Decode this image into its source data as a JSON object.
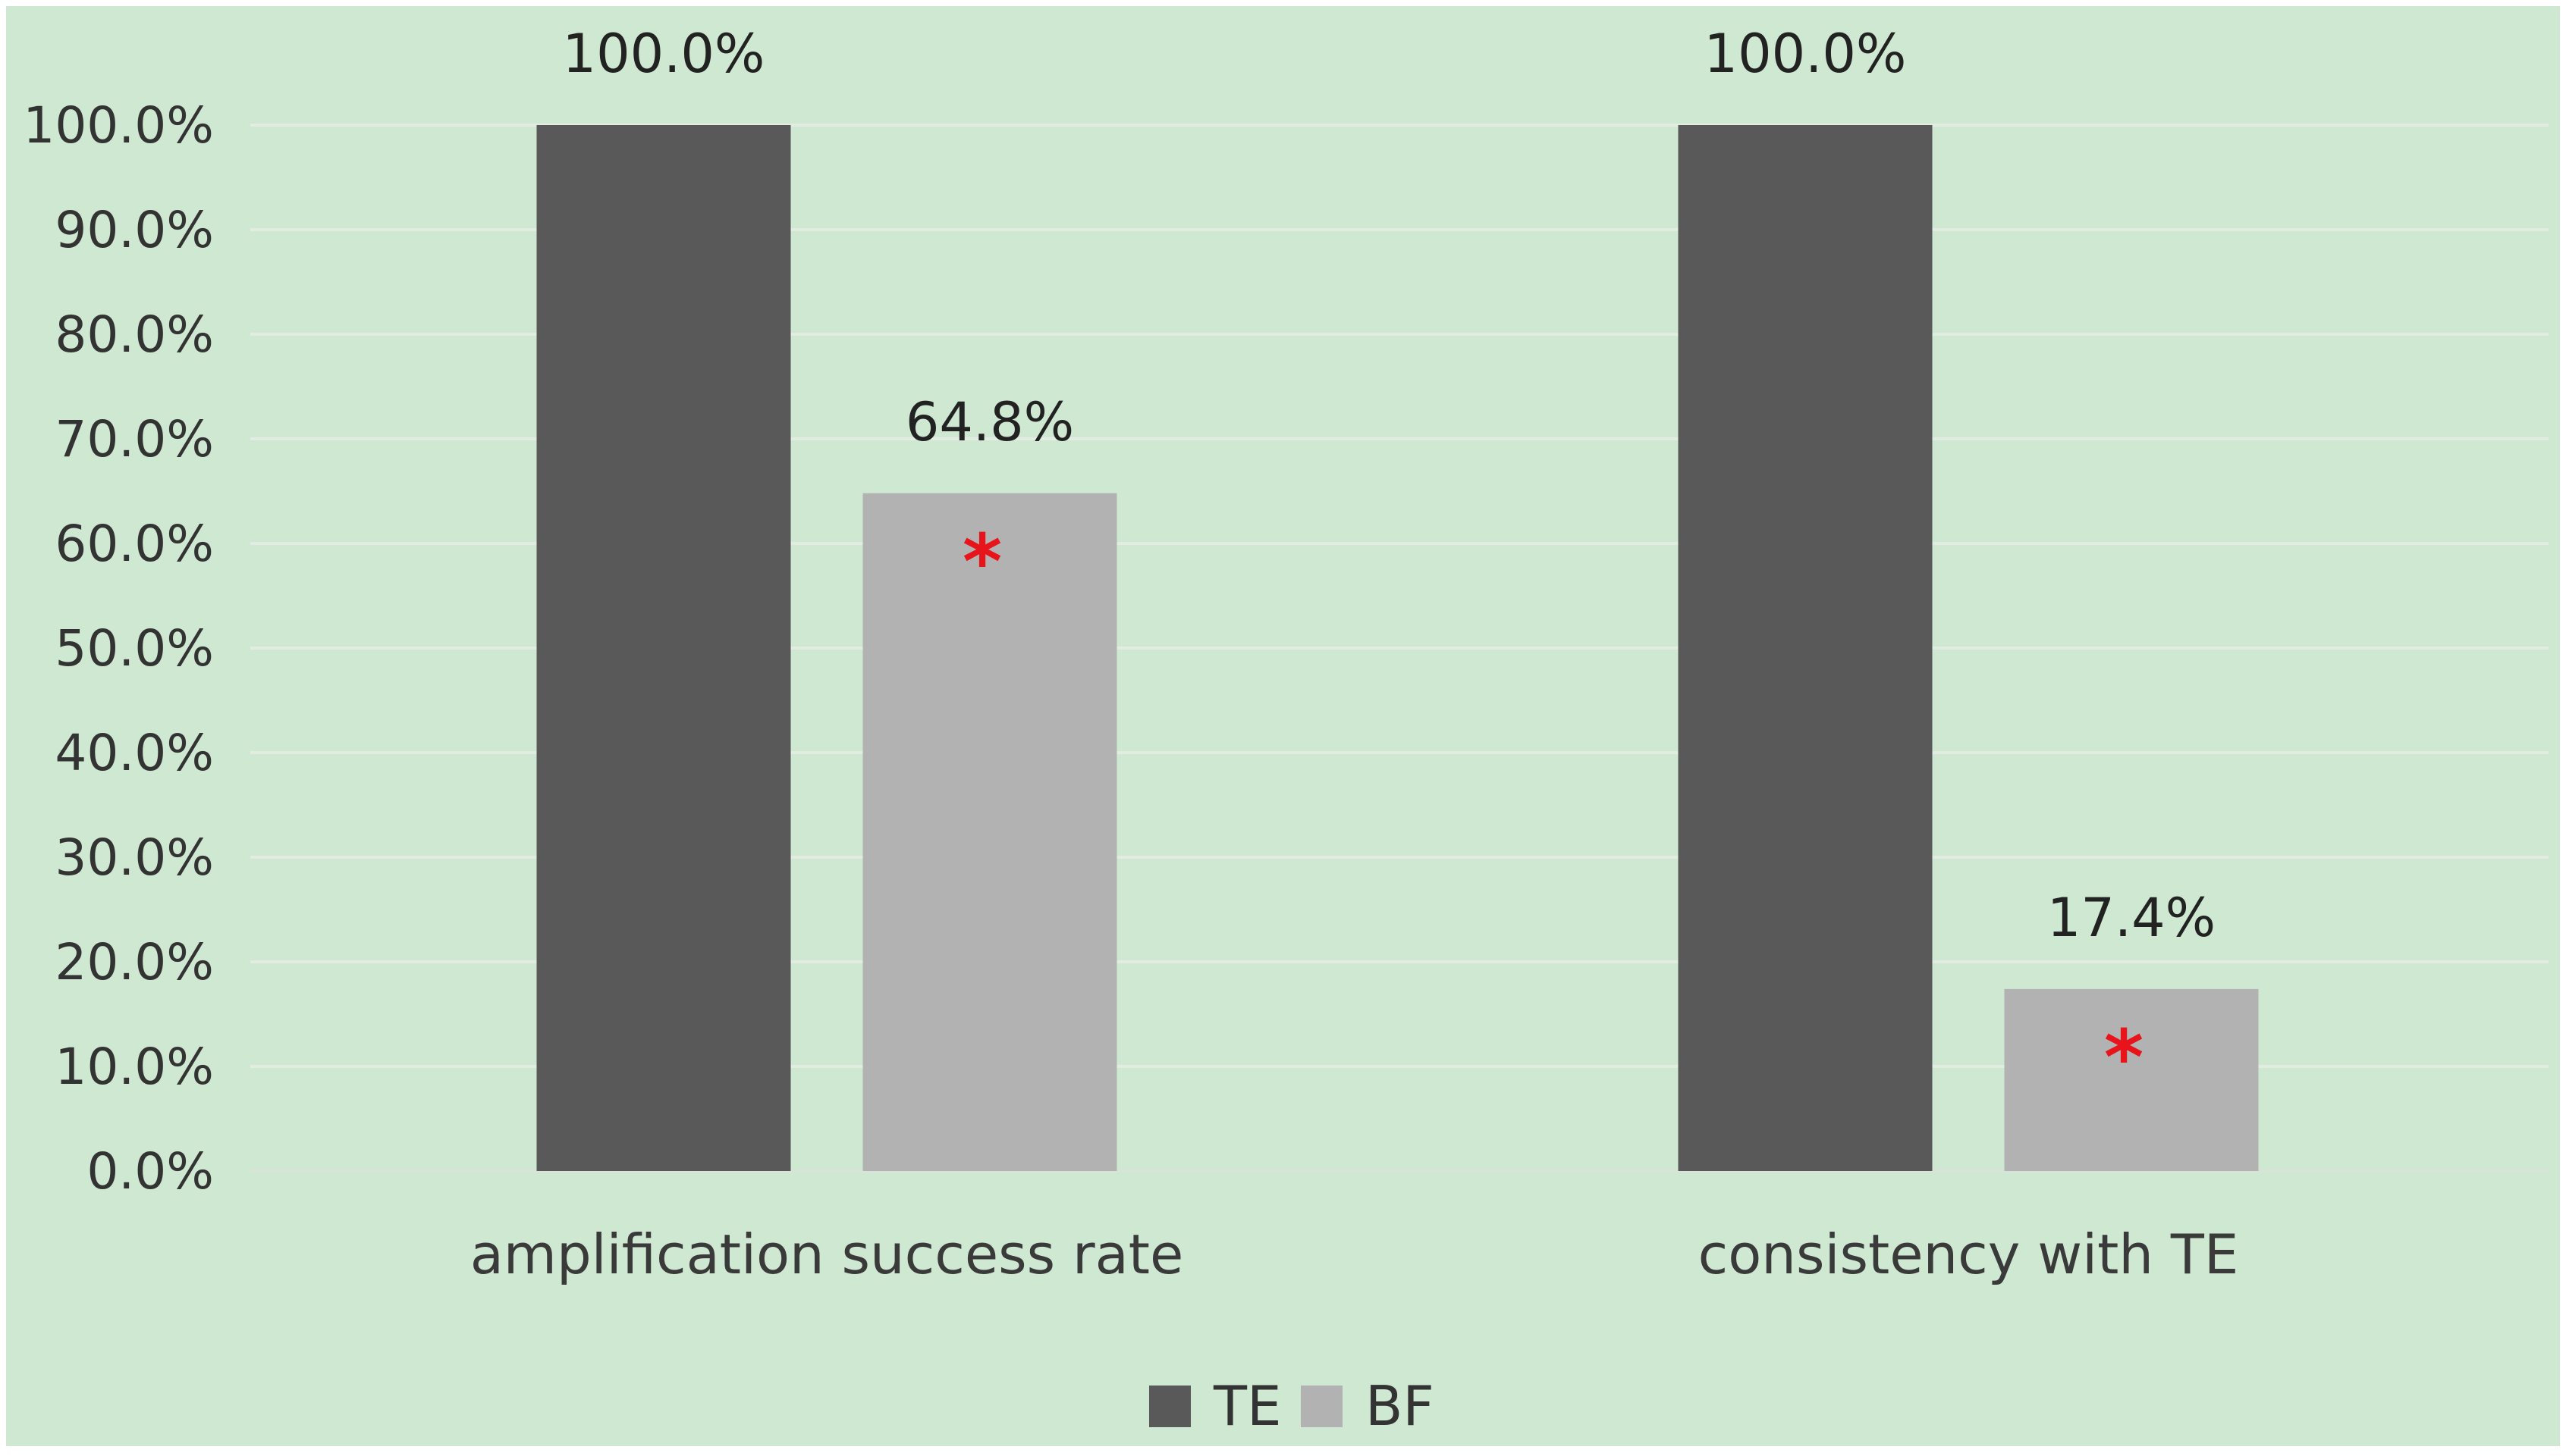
{
  "chart_data": {
    "type": "bar",
    "categories": [
      "amplification success rate",
      "consistency with TE"
    ],
    "series": [
      {
        "name": "TE",
        "values": [
          100.0,
          100.0
        ],
        "labels": [
          "100.0%",
          "100.0%"
        ],
        "color": "#595959"
      },
      {
        "name": "BF",
        "values": [
          64.8,
          17.4
        ],
        "labels": [
          "64.8%",
          "17.4%"
        ],
        "color": "#b2b2b2"
      }
    ],
    "ylim": [
      0,
      100
    ],
    "yticks": [
      "0.0%",
      "10.0%",
      "20.0%",
      "30.0%",
      "40.0%",
      "50.0%",
      "60.0%",
      "70.0%",
      "80.0%",
      "90.0%",
      "100.0%"
    ],
    "annotations": [
      {
        "series": "BF",
        "category": "amplification success rate",
        "text": "*",
        "color": "#e8141c"
      },
      {
        "series": "BF",
        "category": "consistency with TE",
        "text": "*",
        "color": "#e8141c"
      }
    ],
    "grid": true,
    "legend": "bottom-center",
    "background": "#cfe8d1",
    "gridColor": "#e2ece2",
    "border": "#ffffff"
  }
}
